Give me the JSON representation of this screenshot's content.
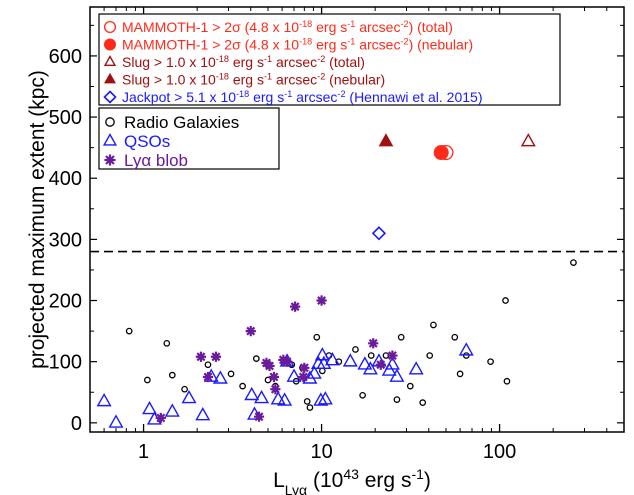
{
  "chart_data": {
    "type": "scatter",
    "xscale": "log",
    "xlim": [
      0.5,
      500
    ],
    "ylim": [
      -15,
      680
    ],
    "xlabel": {
      "main": "L",
      "sub": "Lyα",
      "rest": " (10",
      "sup": "43",
      "rest2": " erg s",
      "sup2": "-1",
      "rest3": ")"
    },
    "ylabel": "projected maximum extent (kpc)",
    "xticks": [
      1,
      10,
      100
    ],
    "xtick_labels": [
      "1",
      "10",
      "100"
    ],
    "yticks": [
      0,
      100,
      200,
      300,
      400,
      500,
      600
    ],
    "ytick_labels": [
      "0",
      "100",
      "200",
      "300",
      "400",
      "500",
      "600"
    ],
    "reference_line": {
      "y": 280,
      "style": "dashed"
    },
    "legend1": [
      {
        "pre": "MAMMOTH-1 > 2σ (4.8 x 10",
        "sup": "-18",
        "mid": " erg s",
        "sup2": "-1",
        "mid2": " arcsec",
        "sup3": "-2",
        "post": ") (total)",
        "marker": "circle-open",
        "color": "#ff2a1a"
      },
      {
        "pre": "MAMMOTH-1 > 2σ (4.8 x 10",
        "sup": "-18",
        "mid": " erg s",
        "sup2": "-1",
        "mid2": " arcsec",
        "sup3": "-2",
        "post": ") (nebular)",
        "marker": "circle-filled",
        "color": "#ff2a1a"
      },
      {
        "pre": "Slug > 1.0 x 10",
        "sup": "-18",
        "mid": " erg s",
        "sup2": "-1",
        "mid2": " arcsec",
        "sup3": "-2",
        "post": " (total)",
        "marker": "triangle-open",
        "color": "#a01010"
      },
      {
        "pre": "Slug > 1.0 x 10",
        "sup": "-18",
        "mid": " erg s",
        "sup2": "-1",
        "mid2": " arcsec",
        "sup3": "-2",
        "post": " (nebular)",
        "marker": "triangle-filled",
        "color": "#a01010"
      },
      {
        "pre": "Jackpot > 5.1 x 10",
        "sup": "-18",
        "mid": " erg s",
        "sup2": "-1",
        "mid2": " arcsec",
        "sup3": "-2",
        "post": " (Hennawi et al. 2015)",
        "marker": "diamond-open",
        "color": "#1a1aff"
      }
    ],
    "legend2": [
      {
        "label": "Radio Galaxies",
        "marker": "circle-open",
        "color": "#000000"
      },
      {
        "label": "QSOs",
        "marker": "triangle-open",
        "color": "#1a1aff"
      },
      {
        "label": "Lyα blob",
        "marker": "asterisk",
        "color": "#6a1a9a"
      }
    ],
    "series": [
      {
        "name": "MAMMOTH-1 > 2σ (total)",
        "marker": "circle-open",
        "color": "#ff2a1a",
        "points": [
          [
            50,
            442
          ]
        ]
      },
      {
        "name": "MAMMOTH-1 > 2σ (nebular)",
        "marker": "circle-filled",
        "color": "#ff2a1a",
        "points": [
          [
            47,
            442
          ]
        ]
      },
      {
        "name": "Slug (total)",
        "marker": "triangle-open",
        "color": "#a01010",
        "points": [
          [
            145,
            460
          ]
        ]
      },
      {
        "name": "Slug (nebular)",
        "marker": "triangle-filled",
        "color": "#a01010",
        "points": [
          [
            23,
            460
          ]
        ]
      },
      {
        "name": "Jackpot",
        "marker": "diamond-open",
        "color": "#1a1aff",
        "points": [
          [
            21,
            310
          ]
        ]
      },
      {
        "name": "Radio Galaxies",
        "marker": "circle-open",
        "color": "#000000",
        "points": [
          [
            0.83,
            150
          ],
          [
            1.05,
            70
          ],
          [
            1.35,
            130
          ],
          [
            1.45,
            78
          ],
          [
            1.7,
            55
          ],
          [
            2.3,
            95
          ],
          [
            3.1,
            80
          ],
          [
            3.6,
            60
          ],
          [
            4.3,
            105
          ],
          [
            5.0,
            70
          ],
          [
            5.5,
            60
          ],
          [
            6.8,
            95
          ],
          [
            7.2,
            68
          ],
          [
            7.8,
            90
          ],
          [
            8.3,
            35
          ],
          [
            8.6,
            25
          ],
          [
            9.4,
            140
          ],
          [
            10.1,
            85
          ],
          [
            11.0,
            110
          ],
          [
            12.5,
            100
          ],
          [
            15.5,
            120
          ],
          [
            17.0,
            45
          ],
          [
            19.0,
            110
          ],
          [
            23.0,
            110
          ],
          [
            26.5,
            38
          ],
          [
            28.0,
            140
          ],
          [
            31.5,
            60
          ],
          [
            37.0,
            33
          ],
          [
            40.5,
            110
          ],
          [
            42.5,
            160
          ],
          [
            56.0,
            140
          ],
          [
            60.0,
            80
          ],
          [
            65.0,
            110
          ],
          [
            89.0,
            100
          ],
          [
            108.0,
            200
          ],
          [
            110.0,
            68
          ],
          [
            260.0,
            262
          ]
        ]
      },
      {
        "name": "QSOs",
        "marker": "triangle-open",
        "color": "#1a1aff",
        "points": [
          [
            0.6,
            35
          ],
          [
            0.7,
            0
          ],
          [
            1.08,
            22
          ],
          [
            1.15,
            5
          ],
          [
            1.45,
            18
          ],
          [
            1.8,
            40
          ],
          [
            2.15,
            12
          ],
          [
            2.4,
            75
          ],
          [
            2.7,
            72
          ],
          [
            4.05,
            45
          ],
          [
            4.2,
            13
          ],
          [
            4.6,
            40
          ],
          [
            5.7,
            38
          ],
          [
            6.2,
            36
          ],
          [
            6.4,
            100
          ],
          [
            7.0,
            75
          ],
          [
            8.6,
            72
          ],
          [
            9.1,
            80
          ],
          [
            9.6,
            96
          ],
          [
            9.9,
            36
          ],
          [
            10.1,
            110
          ],
          [
            10.3,
            96
          ],
          [
            10.5,
            38
          ],
          [
            11.5,
            102
          ],
          [
            14.5,
            100
          ],
          [
            17.5,
            95
          ],
          [
            18.8,
            87
          ],
          [
            21.0,
            100
          ],
          [
            24.0,
            85
          ],
          [
            25.0,
            95
          ],
          [
            26.5,
            75
          ],
          [
            34.0,
            87
          ],
          [
            65.0,
            118
          ]
        ]
      },
      {
        "name": "Lyα blob",
        "marker": "asterisk",
        "color": "#6a1a9a",
        "points": [
          [
            1.25,
            8
          ],
          [
            2.1,
            108
          ],
          [
            2.3,
            75
          ],
          [
            2.55,
            108
          ],
          [
            4.0,
            150
          ],
          [
            4.45,
            10
          ],
          [
            4.9,
            98
          ],
          [
            5.1,
            93
          ],
          [
            5.4,
            75
          ],
          [
            5.5,
            55
          ],
          [
            6.1,
            103
          ],
          [
            6.4,
            100
          ],
          [
            7.1,
            190
          ],
          [
            7.9,
            75
          ],
          [
            8.0,
            90
          ],
          [
            10.0,
            200
          ],
          [
            19.5,
            130
          ],
          [
            21.5,
            95
          ],
          [
            25.0,
            110
          ]
        ]
      }
    ]
  }
}
